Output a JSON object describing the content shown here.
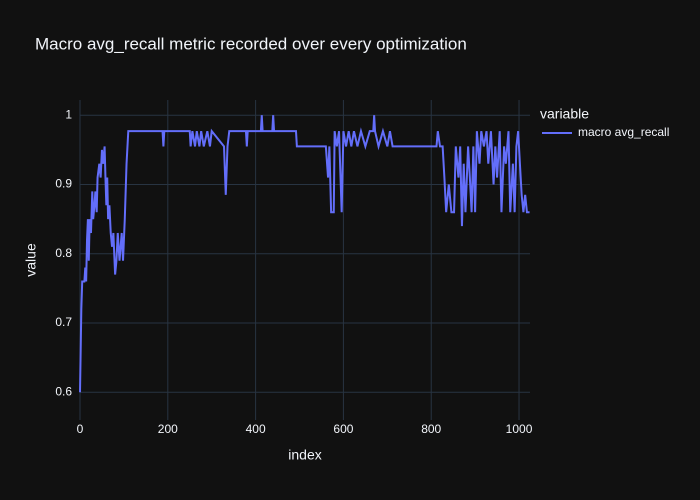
{
  "chart_data": {
    "type": "line",
    "title": "Macro avg_recall metric recorded over every optimization",
    "x_label": "index",
    "y_label": "value",
    "legend_title": "variable",
    "x": [
      0,
      3,
      5,
      10,
      12,
      14,
      16,
      18,
      20,
      22,
      25,
      28,
      30,
      33,
      35,
      38,
      40,
      44,
      47,
      50,
      53,
      56,
      58,
      60,
      62,
      64,
      67,
      70,
      73,
      76,
      80,
      83,
      86,
      90,
      95,
      98,
      102,
      106,
      110,
      188,
      190,
      192,
      250,
      252,
      256,
      262,
      266,
      272,
      276,
      282,
      290,
      296,
      300,
      328,
      332,
      336,
      340,
      378,
      380,
      382,
      412,
      414,
      416,
      438,
      440,
      442,
      492,
      494,
      560,
      565,
      568,
      572,
      578,
      580,
      585,
      590,
      596,
      600,
      606,
      612,
      618,
      624,
      632,
      640,
      650,
      660,
      668,
      670,
      672,
      680,
      690,
      700,
      706,
      712,
      720,
      812,
      815,
      820,
      826,
      830,
      834,
      840,
      846,
      852,
      856,
      862,
      866,
      870,
      874,
      878,
      884,
      888,
      892,
      896,
      900,
      904,
      910,
      914,
      920,
      926,
      930,
      936,
      942,
      946,
      950,
      956,
      960,
      966,
      970,
      976,
      980,
      986,
      990,
      994,
      998,
      1002,
      1006,
      1010,
      1014,
      1018,
      1024
    ],
    "series": [
      {
        "name": "macro avg_recall",
        "color": "#636efa",
        "values": [
          0.6,
          0.72,
          0.76,
          0.76,
          0.78,
          0.76,
          0.82,
          0.85,
          0.79,
          0.85,
          0.83,
          0.89,
          0.85,
          0.87,
          0.89,
          0.86,
          0.91,
          0.93,
          0.91,
          0.95,
          0.93,
          0.955,
          0.91,
          0.87,
          0.91,
          0.85,
          0.87,
          0.83,
          0.81,
          0.83,
          0.77,
          0.79,
          0.83,
          0.79,
          0.83,
          0.79,
          0.85,
          0.93,
          0.977,
          0.977,
          0.955,
          0.977,
          0.977,
          0.955,
          0.977,
          0.955,
          0.977,
          0.955,
          0.977,
          0.955,
          0.977,
          0.955,
          0.977,
          0.955,
          0.885,
          0.955,
          0.977,
          0.977,
          0.955,
          0.977,
          0.977,
          1.0,
          0.977,
          0.977,
          1.0,
          0.977,
          0.977,
          0.955,
          0.955,
          0.91,
          0.955,
          0.86,
          0.86,
          0.977,
          0.955,
          0.977,
          0.86,
          0.977,
          0.955,
          0.977,
          0.955,
          0.977,
          0.955,
          0.977,
          0.955,
          0.977,
          0.977,
          1.0,
          0.977,
          0.955,
          0.977,
          0.955,
          0.977,
          0.955,
          0.955,
          0.955,
          0.977,
          0.955,
          0.955,
          0.91,
          0.86,
          0.9,
          0.86,
          0.86,
          0.955,
          0.91,
          0.955,
          0.84,
          0.93,
          0.86,
          0.955,
          0.91,
          0.86,
          0.955,
          0.86,
          0.977,
          0.93,
          0.977,
          0.955,
          0.977,
          0.93,
          0.977,
          0.9,
          0.955,
          0.91,
          0.977,
          0.86,
          0.955,
          0.93,
          0.977,
          0.86,
          0.93,
          0.86,
          0.955,
          0.977,
          0.93,
          0.885,
          0.86,
          0.885,
          0.86,
          0.86
        ]
      }
    ],
    "xlim": [
      0,
      1025
    ],
    "ylim": [
      0.56,
      1.022
    ],
    "xticks": [
      0,
      200,
      400,
      600,
      800,
      1000
    ],
    "yticks": [
      0.6,
      0.7,
      0.8,
      0.9,
      1
    ],
    "grid": true
  }
}
